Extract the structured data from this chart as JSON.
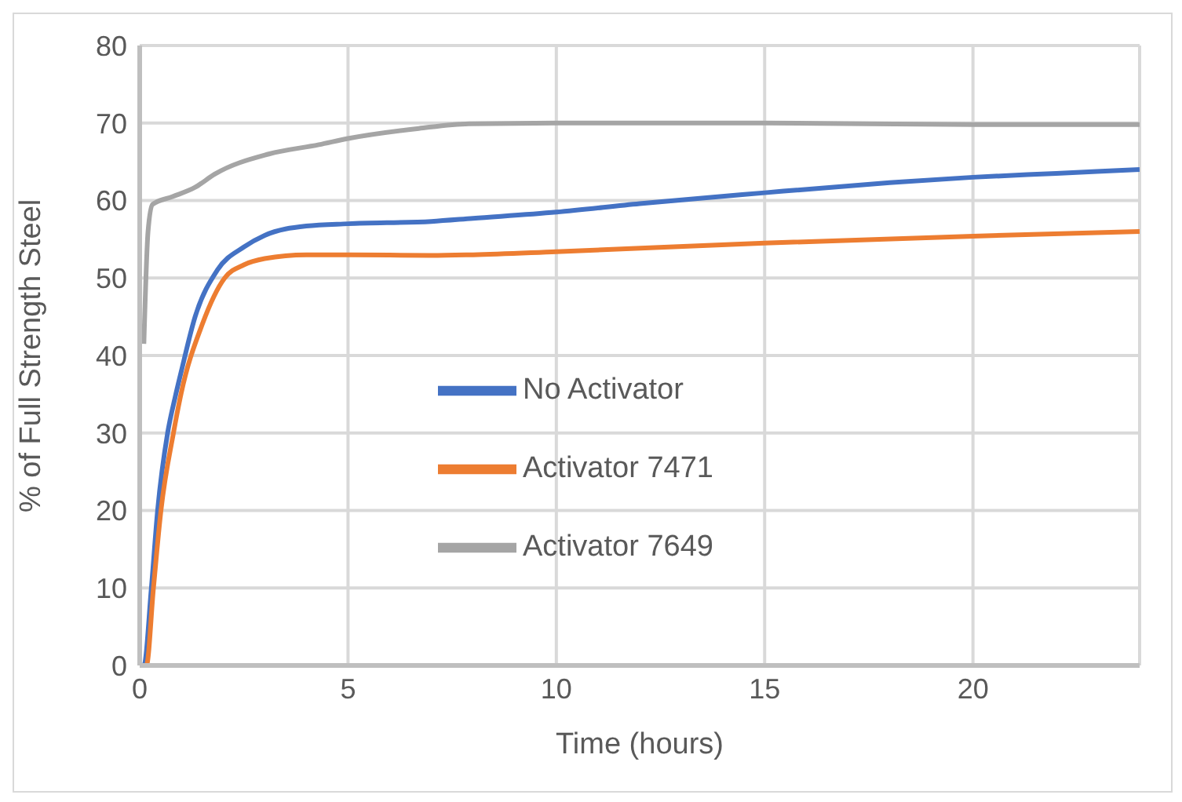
{
  "chart_data": {
    "type": "line",
    "xlabel": "Time (hours)",
    "ylabel": "% of Full Strength Steel",
    "xlim": [
      0,
      24
    ],
    "xticks": [
      0,
      5,
      10,
      15,
      20
    ],
    "ylim": [
      0,
      80
    ],
    "yticks": [
      0,
      10,
      20,
      30,
      40,
      50,
      60,
      70,
      80
    ],
    "grid": true,
    "legend": "center",
    "marker": "none",
    "line_style": "solid",
    "series": [
      {
        "name": "No Activator",
        "color": "#4472c4",
        "x": [
          0,
          0.1,
          0.28,
          0.43,
          0.67,
          0.85,
          1.0,
          1.33,
          1.86,
          2.5,
          3,
          4,
          5,
          7,
          8,
          10,
          12,
          15,
          18,
          20,
          22,
          24
        ],
        "values": [
          0,
          0,
          10,
          20,
          30,
          34.6,
          38,
          45,
          51,
          54,
          55.5,
          56.7,
          57,
          57.3,
          57.7,
          58.5,
          59.6,
          61,
          62.3,
          63,
          63.5,
          64
        ]
      },
      {
        "name": "Activator 7471",
        "color": "#ed7d31",
        "x": [
          0,
          0.16,
          0.33,
          0.51,
          0.81,
          0.99,
          1.5,
          2.04,
          2.5,
          3,
          4,
          5,
          7,
          8,
          10,
          15,
          20,
          24
        ],
        "values": [
          0,
          0,
          10,
          20,
          30,
          35,
          44,
          50,
          51.7,
          52.5,
          53,
          53,
          52.9,
          53,
          53.4,
          54.5,
          55.4,
          56
        ]
      },
      {
        "name": "Activator 7649",
        "color": "#a5a5a5",
        "x": [
          0.1,
          0.2,
          0.31,
          0.79,
          1.33,
          1.8,
          3.1,
          4.3,
          5,
          6.7,
          7.9,
          10,
          15,
          20,
          24
        ],
        "values": [
          41.5,
          56,
          59.5,
          60.5,
          61.7,
          63.4,
          66,
          67.2,
          68,
          69.3,
          69.9,
          70,
          70,
          69.8,
          69.8
        ]
      }
    ]
  }
}
